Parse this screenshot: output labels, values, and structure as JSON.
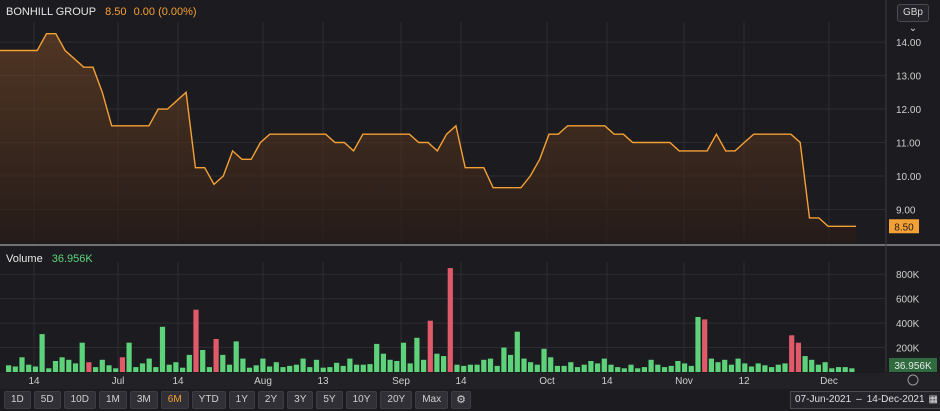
{
  "header": {
    "name": "BONHILL GROUP",
    "price": "8.50",
    "change": "0.00 (0.00%)",
    "currency": "GBp"
  },
  "volume": {
    "label": "Volume",
    "value": "36.956K"
  },
  "ranges": [
    "1D",
    "5D",
    "10D",
    "1M",
    "3M",
    "6M",
    "YTD",
    "1Y",
    "2Y",
    "3Y",
    "5Y",
    "10Y",
    "20Y",
    "Max"
  ],
  "active_range": "6M",
  "date_range": {
    "from": "07-Jun-2021",
    "to": "14-Dec-2021"
  },
  "colors": {
    "line": "#f5a035",
    "up": "#5dd27a",
    "down": "#e05a6a",
    "bg": "#1c1c20",
    "grid": "#2c2c32"
  },
  "chart_data": [
    {
      "type": "area",
      "series": [
        {
          "values": [
            13.75,
            13.75,
            13.75,
            13.75,
            13.75,
            14.25,
            14.25,
            13.75,
            13.5,
            13.25,
            13.25,
            12.5,
            11.5,
            11.5,
            11.5,
            11.5,
            11.5,
            12.0,
            12.0,
            12.25,
            12.5,
            10.25,
            10.25,
            9.75,
            10.0,
            10.75,
            10.5,
            10.5,
            11.0,
            11.25,
            11.25,
            11.25,
            11.25,
            11.25,
            11.25,
            11.25,
            11.0,
            11.0,
            10.75,
            11.25,
            11.25,
            11.25,
            11.25,
            11.25,
            11.25,
            11.0,
            11.0,
            10.75,
            11.25,
            11.5,
            10.25,
            10.25,
            10.25,
            9.65,
            9.65,
            9.65,
            9.65,
            10.0,
            10.5,
            11.25,
            11.25,
            11.5,
            11.5,
            11.5,
            11.5,
            11.5,
            11.25,
            11.25,
            11.0,
            11.0,
            11.0,
            11.0,
            11.0,
            10.75,
            10.75,
            10.75,
            10.75,
            11.25,
            10.75,
            10.75,
            11.0,
            11.25,
            11.25,
            11.25,
            11.25,
            11.25,
            11.0,
            8.75,
            8.75,
            8.5,
            8.5,
            8.5,
            8.5
          ]
        }
      ],
      "ylim": [
        8.0,
        14.6
      ],
      "yticks": [
        "9.00",
        "10.00",
        "11.00",
        "12.00",
        "13.00",
        "14.00"
      ],
      "last_label": "8.50"
    },
    {
      "type": "bar",
      "series": [
        {
          "values": [
            55,
            45,
            120,
            60,
            45,
            310,
            30,
            90,
            120,
            100,
            70,
            240,
            80,
            40,
            100,
            55,
            30,
            120,
            240,
            40,
            70,
            110,
            40,
            370,
            60,
            80,
            35,
            140,
            510,
            180,
            40,
            270,
            140,
            60,
            250,
            110,
            35,
            55,
            110,
            45,
            80,
            40,
            50,
            60,
            110,
            40,
            100,
            35,
            40,
            75,
            50,
            110,
            60,
            60,
            65,
            230,
            150,
            100,
            90,
            240,
            70,
            280,
            100,
            420,
            150,
            130,
            850,
            60,
            50,
            60,
            60,
            100,
            110,
            50,
            200,
            140,
            330,
            110,
            80,
            60,
            190,
            120,
            50,
            50,
            80,
            40,
            60,
            90,
            70,
            110,
            60,
            40,
            30,
            60,
            30,
            40,
            100,
            60,
            40,
            50,
            90,
            70,
            50,
            450,
            430,
            110,
            80,
            100,
            60,
            110,
            70,
            45,
            70,
            55,
            40,
            60,
            70,
            300,
            240,
            130,
            100,
            60,
            80,
            30,
            40,
            40,
            30
          ]
        }
      ],
      "colors": [
        "up",
        "up",
        "up",
        "up",
        "up",
        "up",
        "up",
        "up",
        "up",
        "up",
        "up",
        "up",
        "down",
        "up",
        "up",
        "up",
        "up",
        "down",
        "up",
        "up",
        "up",
        "up",
        "up",
        "up",
        "up",
        "up",
        "up",
        "up",
        "down",
        "up",
        "up",
        "down",
        "up",
        "up",
        "up",
        "up",
        "up",
        "up",
        "up",
        "up",
        "up",
        "up",
        "up",
        "up",
        "up",
        "up",
        "up",
        "up",
        "up",
        "up",
        "up",
        "up",
        "up",
        "up",
        "up",
        "up",
        "up",
        "up",
        "up",
        "up",
        "up",
        "up",
        "up",
        "down",
        "up",
        "up",
        "down",
        "up",
        "up",
        "up",
        "up",
        "up",
        "up",
        "up",
        "up",
        "up",
        "up",
        "up",
        "up",
        "up",
        "up",
        "up",
        "up",
        "up",
        "up",
        "up",
        "up",
        "up",
        "up",
        "up",
        "up",
        "up",
        "up",
        "up",
        "up",
        "up",
        "up",
        "up",
        "up",
        "up",
        "up",
        "up",
        "up",
        "up",
        "down",
        "up",
        "up",
        "up",
        "up",
        "up",
        "up",
        "up",
        "up",
        "up",
        "up",
        "up",
        "up",
        "down",
        "down",
        "up",
        "up",
        "up",
        "up",
        "up",
        "up",
        "up",
        "up"
      ],
      "ylim": [
        0,
        900
      ],
      "yticks": [
        "200K",
        "400K",
        "600K",
        "800K"
      ]
    }
  ],
  "x_ticks": [
    "14",
    "Jul",
    "14",
    "Aug",
    "13",
    "Sep",
    "14",
    "Oct",
    "14",
    "Nov",
    "12",
    "Dec"
  ]
}
